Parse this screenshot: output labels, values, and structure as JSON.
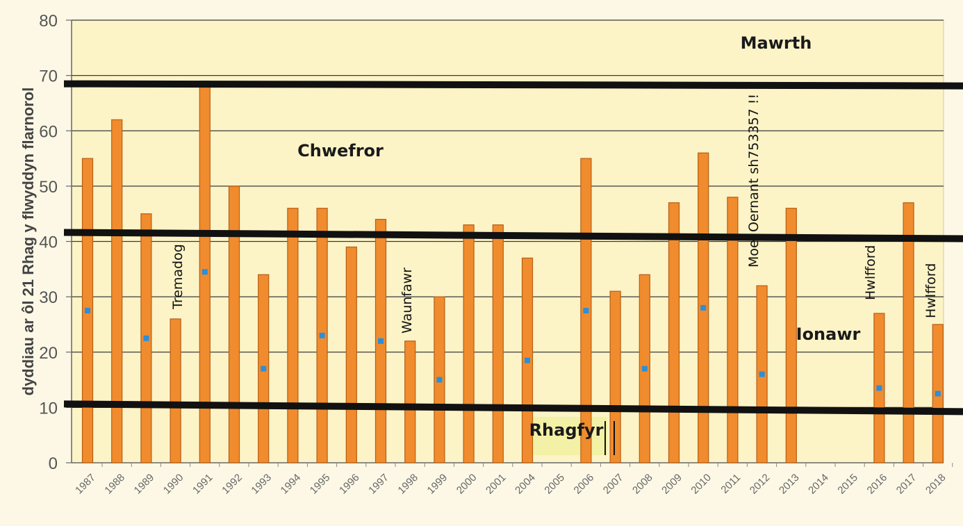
{
  "chart_data": {
    "type": "bar",
    "ylabel": "dyddiau ar ôl 21 Rhag y flwyddyn flarnorol",
    "ylim": [
      0,
      80
    ],
    "yticks": [
      0,
      10,
      20,
      30,
      40,
      50,
      60,
      70,
      80
    ],
    "grid": true,
    "categories": [
      "1987",
      "1988",
      "1989",
      "1990",
      "1991",
      "1992",
      "1993",
      "1994",
      "1995",
      "1996",
      "1997",
      "1998",
      "1999",
      "2000",
      "2001",
      "2004",
      "2005",
      "2006",
      "2007",
      "2008",
      "2009",
      "2010",
      "2011",
      "2012",
      "2013",
      "2014",
      "2015",
      "2016",
      "2017",
      "2018"
    ],
    "series": [
      {
        "values": [
          55,
          62,
          45,
          26,
          69,
          50,
          34,
          46,
          46,
          39,
          44,
          22,
          30,
          43,
          43,
          37,
          null,
          55,
          31,
          34,
          47,
          56,
          48,
          32,
          46,
          null,
          null,
          27,
          47,
          25
        ]
      },
      {
        "values": [
          27.5,
          null,
          22.5,
          null,
          34.5,
          null,
          17,
          null,
          23,
          null,
          22,
          null,
          15,
          null,
          null,
          18.5,
          null,
          27.5,
          null,
          17,
          null,
          28,
          null,
          16,
          null,
          null,
          null,
          13.5,
          null,
          12.5
        ]
      }
    ],
    "thresholds": [
      68.5,
      41,
      10
    ],
    "month_labels": [
      "Mawrth",
      "Chwefror",
      "Ionawr",
      "Rhagfyr"
    ],
    "station_annotations": [
      "Tremadog",
      "Waunfawr",
      "Moel Oernant sh753357 !!",
      "Hwlfford",
      "Hwlfford"
    ],
    "colors": {
      "bar": "#f08c2e",
      "bar_edge": "#b85d12",
      "marker": "#2b8fd9",
      "plot_bg": "#fcf3c7",
      "threshold": "#111111",
      "grid": "#3a3a3a",
      "highlight": "#f3f1a6"
    }
  }
}
